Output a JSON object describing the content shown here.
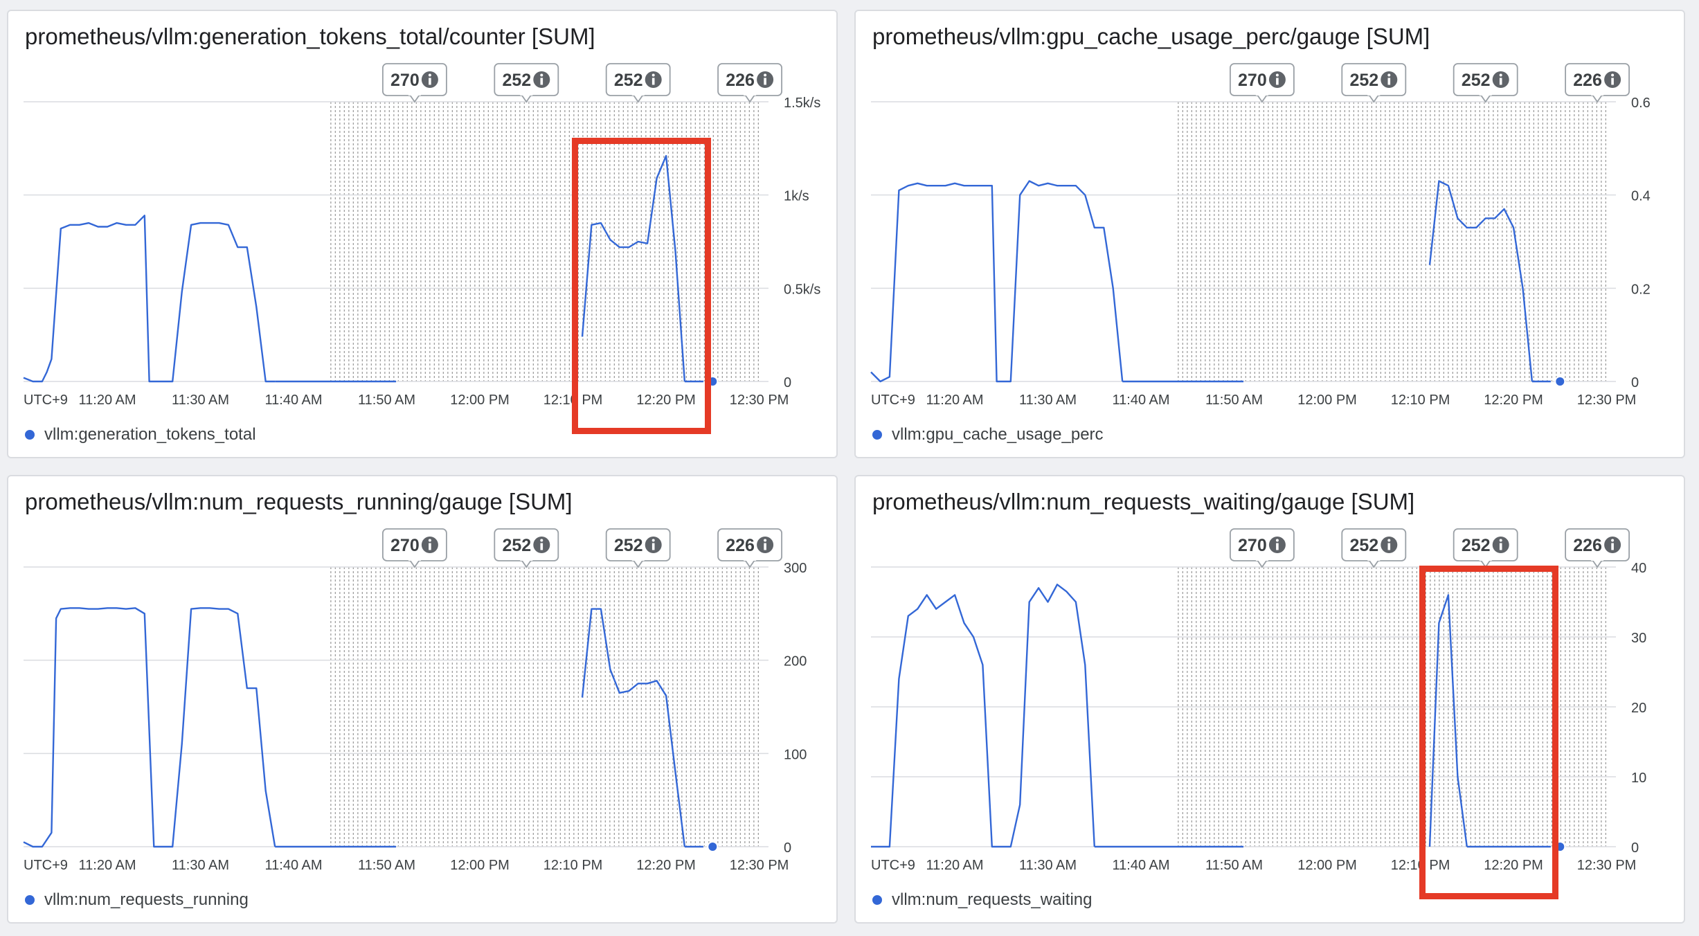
{
  "colors": {
    "series": "#3367d6",
    "highlight": "#e53a26",
    "grid": "#dadce0",
    "marker_border": "#9aa0a6"
  },
  "x_axis": {
    "timezone_label": "UTC+9",
    "ticks": [
      "11:20 AM",
      "11:30 AM",
      "11:40 AM",
      "11:50 AM",
      "12:00 PM",
      "12:10 PM",
      "12:20 PM",
      "12:30 PM"
    ]
  },
  "markers": [
    {
      "label": "270",
      "icon": "info-icon",
      "time": "11:53"
    },
    {
      "label": "252",
      "icon": "info-icon",
      "time": "12:05"
    },
    {
      "label": "252",
      "icon": "info-icon",
      "time": "12:17"
    },
    {
      "label": "226",
      "icon": "info-icon",
      "time": "12:29"
    }
  ],
  "chart_data": [
    {
      "type": "line",
      "title": "prometheus/vllm:generation_tokens_total/counter [SUM]",
      "legend": "vllm:generation_tokens_total",
      "xlabel": "",
      "ylabel": "",
      "x_range": [
        "11:11",
        "12:31"
      ],
      "ylim": [
        0,
        1500
      ],
      "y_ticks": [
        {
          "value": 0,
          "label": "0"
        },
        {
          "value": 500,
          "label": "0.5k/s"
        },
        {
          "value": 1000,
          "label": "1k/s"
        },
        {
          "value": 1500,
          "label": "1.5k/s"
        }
      ],
      "legend_position": "bottom-left",
      "grid": true,
      "segments": [
        [
          [
            "11:11",
            20
          ],
          [
            "11:12",
            0
          ],
          [
            "11:13",
            0
          ],
          [
            "11:13.5",
            50
          ],
          [
            "11:14",
            120
          ],
          [
            "11:15",
            820
          ],
          [
            "11:16",
            840
          ],
          [
            "11:17",
            840
          ],
          [
            "11:18",
            850
          ],
          [
            "11:19",
            830
          ],
          [
            "11:20",
            830
          ],
          [
            "11:21",
            850
          ],
          [
            "11:22",
            840
          ],
          [
            "11:23",
            840
          ],
          [
            "11:24",
            890
          ],
          [
            "11:24.5",
            0
          ],
          [
            "11:25",
            0
          ],
          [
            "11:26",
            0
          ],
          [
            "11:27",
            0
          ],
          [
            "11:28",
            480
          ],
          [
            "11:29",
            840
          ],
          [
            "11:30",
            850
          ],
          [
            "11:31",
            850
          ],
          [
            "11:32",
            850
          ],
          [
            "11:33",
            840
          ],
          [
            "11:34",
            720
          ],
          [
            "11:35",
            720
          ],
          [
            "11:36",
            400
          ],
          [
            "11:37",
            0
          ],
          [
            "11:38",
            0
          ]
        ],
        [
          [
            "11:38",
            0
          ],
          [
            "11:51",
            0
          ]
        ],
        [
          [
            "12:11",
            240
          ],
          [
            "12:12",
            840
          ],
          [
            "12:13",
            850
          ],
          [
            "12:14",
            760
          ],
          [
            "12:15",
            720
          ],
          [
            "12:16",
            720
          ],
          [
            "12:17",
            750
          ],
          [
            "12:18",
            740
          ],
          [
            "12:19",
            1090
          ],
          [
            "12:20",
            1210
          ],
          [
            "12:21",
            700
          ],
          [
            "12:22",
            0
          ]
        ],
        [
          [
            "12:22",
            0
          ],
          [
            "12:24",
            0
          ]
        ]
      ],
      "last_point": [
        "12:25",
        0
      ],
      "highlight_box": {
        "from": "12:10",
        "to": "12:25",
        "y_from": -100,
        "y_to": 1300
      }
    },
    {
      "type": "line",
      "title": "prometheus/vllm:gpu_cache_usage_perc/gauge [SUM]",
      "legend": "vllm:gpu_cache_usage_perc",
      "xlabel": "",
      "ylabel": "",
      "x_range": [
        "11:11",
        "12:31"
      ],
      "ylim": [
        0,
        0.6
      ],
      "y_ticks": [
        {
          "value": 0,
          "label": "0"
        },
        {
          "value": 0.2,
          "label": "0.2"
        },
        {
          "value": 0.4,
          "label": "0.4"
        },
        {
          "value": 0.6,
          "label": "0.6"
        }
      ],
      "legend_position": "bottom-left",
      "grid": true,
      "segments": [
        [
          [
            "11:11",
            0.02
          ],
          [
            "11:12",
            0
          ],
          [
            "11:13",
            0.01
          ],
          [
            "11:14",
            0.41
          ],
          [
            "11:15",
            0.42
          ],
          [
            "11:16",
            0.425
          ],
          [
            "11:17",
            0.42
          ],
          [
            "11:18",
            0.42
          ],
          [
            "11:19",
            0.42
          ],
          [
            "11:20",
            0.425
          ],
          [
            "11:21",
            0.42
          ],
          [
            "11:22",
            0.42
          ],
          [
            "11:23",
            0.42
          ],
          [
            "11:24",
            0.42
          ],
          [
            "11:24.5",
            0
          ],
          [
            "11:26",
            0
          ],
          [
            "11:27",
            0.4
          ],
          [
            "11:28",
            0.43
          ],
          [
            "11:29",
            0.42
          ],
          [
            "11:30",
            0.425
          ],
          [
            "11:31",
            0.42
          ],
          [
            "11:32",
            0.42
          ],
          [
            "11:33",
            0.42
          ],
          [
            "11:34",
            0.4
          ],
          [
            "11:35",
            0.33
          ],
          [
            "11:36",
            0.33
          ],
          [
            "11:37",
            0.2
          ],
          [
            "11:38",
            0
          ]
        ],
        [
          [
            "11:38",
            0
          ],
          [
            "11:51",
            0
          ]
        ],
        [
          [
            "12:11",
            0.25
          ],
          [
            "12:12",
            0.43
          ],
          [
            "12:13",
            0.42
          ],
          [
            "12:14",
            0.35
          ],
          [
            "12:15",
            0.33
          ],
          [
            "12:16",
            0.33
          ],
          [
            "12:17",
            0.35
          ],
          [
            "12:18",
            0.35
          ],
          [
            "12:19",
            0.37
          ],
          [
            "12:20",
            0.33
          ],
          [
            "12:21",
            0.2
          ],
          [
            "12:22",
            0
          ]
        ],
        [
          [
            "12:22",
            0
          ],
          [
            "12:24",
            0
          ]
        ]
      ],
      "last_point": [
        "12:25",
        0
      ]
    },
    {
      "type": "line",
      "title": "prometheus/vllm:num_requests_running/gauge [SUM]",
      "legend": "vllm:num_requests_running",
      "xlabel": "",
      "ylabel": "",
      "x_range": [
        "11:11",
        "12:31"
      ],
      "ylim": [
        0,
        300
      ],
      "y_ticks": [
        {
          "value": 0,
          "label": "0"
        },
        {
          "value": 100,
          "label": "100"
        },
        {
          "value": 200,
          "label": "200"
        },
        {
          "value": 300,
          "label": "300"
        }
      ],
      "legend_position": "bottom-left",
      "grid": true,
      "segments": [
        [
          [
            "11:11",
            5
          ],
          [
            "11:12",
            0
          ],
          [
            "11:13",
            0
          ],
          [
            "11:14",
            15
          ],
          [
            "11:14.5",
            245
          ],
          [
            "11:15",
            255
          ],
          [
            "11:16",
            256
          ],
          [
            "11:17",
            256
          ],
          [
            "11:18",
            255
          ],
          [
            "11:19",
            255
          ],
          [
            "11:20",
            256
          ],
          [
            "11:21",
            256
          ],
          [
            "11:22",
            255
          ],
          [
            "11:23",
            256
          ],
          [
            "11:24",
            250
          ],
          [
            "11:25",
            0
          ],
          [
            "11:26",
            0
          ],
          [
            "11:27",
            0
          ],
          [
            "11:28",
            110
          ],
          [
            "11:29",
            255
          ],
          [
            "11:30",
            256
          ],
          [
            "11:31",
            256
          ],
          [
            "11:32",
            255
          ],
          [
            "11:33",
            255
          ],
          [
            "11:34",
            250
          ],
          [
            "11:35",
            170
          ],
          [
            "11:36",
            170
          ],
          [
            "11:37",
            60
          ],
          [
            "11:38",
            0
          ]
        ],
        [
          [
            "11:38",
            0
          ],
          [
            "11:51",
            0
          ]
        ],
        [
          [
            "12:11",
            160
          ],
          [
            "12:12",
            255
          ],
          [
            "12:13",
            255
          ],
          [
            "12:14",
            190
          ],
          [
            "12:15",
            165
          ],
          [
            "12:16",
            167
          ],
          [
            "12:17",
            175
          ],
          [
            "12:18",
            175
          ],
          [
            "12:19",
            178
          ],
          [
            "12:20",
            162
          ],
          [
            "12:21",
            80
          ],
          [
            "12:22",
            0
          ]
        ],
        [
          [
            "12:22",
            0
          ],
          [
            "12:24",
            0
          ]
        ]
      ],
      "last_point": [
        "12:25",
        0
      ]
    },
    {
      "type": "line",
      "title": "prometheus/vllm:num_requests_waiting/gauge [SUM]",
      "legend": "vllm:num_requests_waiting",
      "xlabel": "",
      "ylabel": "",
      "x_range": [
        "11:11",
        "12:31"
      ],
      "ylim": [
        0,
        40
      ],
      "y_ticks": [
        {
          "value": 0,
          "label": "0"
        },
        {
          "value": 10,
          "label": "10"
        },
        {
          "value": 20,
          "label": "20"
        },
        {
          "value": 30,
          "label": "30"
        },
        {
          "value": 40,
          "label": "40"
        }
      ],
      "legend_position": "bottom-left",
      "grid": true,
      "segments": [
        [
          [
            "11:11",
            0
          ],
          [
            "11:13",
            0
          ],
          [
            "11:14",
            24
          ],
          [
            "11:15",
            33
          ],
          [
            "11:16",
            34
          ],
          [
            "11:17",
            36
          ],
          [
            "11:18",
            34
          ],
          [
            "11:19",
            35
          ],
          [
            "11:20",
            36
          ],
          [
            "11:21",
            32
          ],
          [
            "11:22",
            30
          ],
          [
            "11:23",
            26
          ],
          [
            "11:24",
            0
          ],
          [
            "11:26",
            0
          ],
          [
            "11:27",
            6
          ],
          [
            "11:28",
            35
          ],
          [
            "11:29",
            37
          ],
          [
            "11:30",
            35
          ],
          [
            "11:31",
            37.5
          ],
          [
            "11:32",
            36.5
          ],
          [
            "11:33",
            35
          ],
          [
            "11:34",
            26
          ],
          [
            "11:35",
            0
          ]
        ],
        [
          [
            "11:35",
            0
          ],
          [
            "11:51",
            0
          ]
        ],
        [
          [
            "12:11",
            0
          ],
          [
            "12:12",
            32
          ],
          [
            "12:13",
            36
          ],
          [
            "12:14",
            10
          ],
          [
            "12:15",
            0
          ]
        ],
        [
          [
            "12:15",
            0
          ],
          [
            "12:24",
            0
          ]
        ]
      ],
      "last_point": [
        "12:25",
        0
      ],
      "highlight_box": {
        "from": "12:10",
        "to": "12:25",
        "y_from": -5,
        "y_to": 40
      }
    }
  ]
}
